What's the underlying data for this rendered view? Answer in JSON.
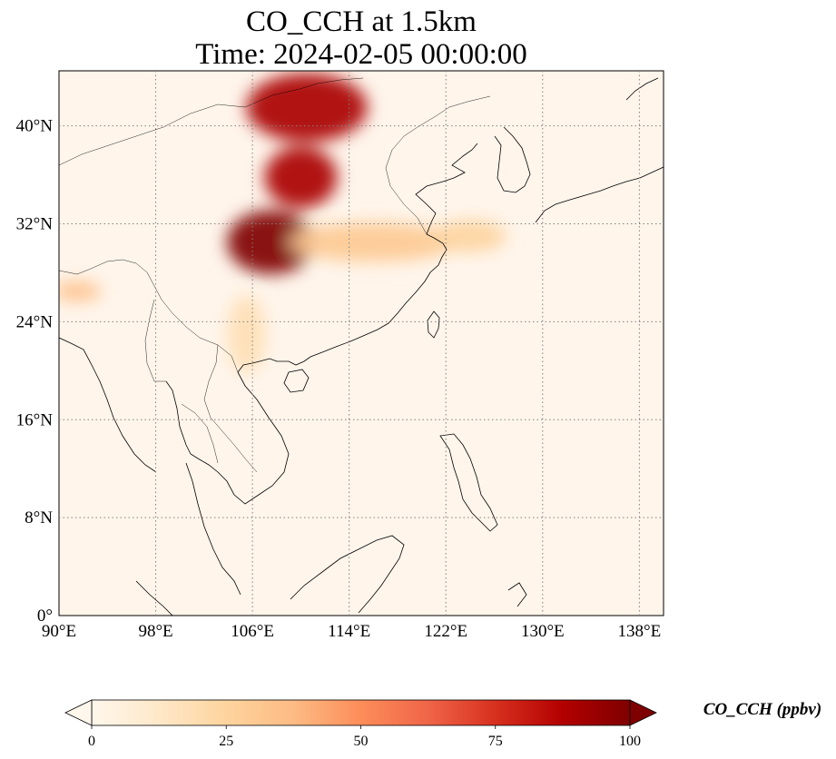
{
  "figure": {
    "title_line1": "CO_CCH at 1.5km",
    "title_line2": "Time: 2024-02-05 00:00:00"
  },
  "map": {
    "lon_range": [
      90,
      140
    ],
    "lat_range": [
      0,
      44.5
    ],
    "gridline_style": "dotted",
    "gridline_color": "#808080",
    "x_ticks": [
      {
        "value": 90,
        "label": "90°E"
      },
      {
        "value": 98,
        "label": "98°E"
      },
      {
        "value": 106,
        "label": "106°E"
      },
      {
        "value": 114,
        "label": "114°E"
      },
      {
        "value": 122,
        "label": "122°E"
      },
      {
        "value": 130,
        "label": "130°E"
      },
      {
        "value": 138,
        "label": "138°E"
      }
    ],
    "y_ticks": [
      {
        "value": 40,
        "label": "40°N"
      },
      {
        "value": 32,
        "label": "32°N"
      },
      {
        "value": 24,
        "label": "24°N"
      },
      {
        "value": 16,
        "label": "16°N"
      },
      {
        "value": 8,
        "label": "8°N"
      },
      {
        "value": 0,
        "label": "0°"
      }
    ],
    "background_color": "#fff5eb",
    "plumes": [
      {
        "name": "central-china-core",
        "lon": 107.5,
        "lat": 30.5,
        "rx_deg": 3.6,
        "ry_deg": 2.6,
        "value": 100
      },
      {
        "name": "sichuan-plume-north",
        "lon": 110.0,
        "lat": 35.8,
        "rx_deg": 3.0,
        "ry_deg": 2.5,
        "value": 90
      },
      {
        "name": "north-plume",
        "lon": 110.5,
        "lat": 41.5,
        "rx_deg": 5.0,
        "ry_deg": 2.8,
        "value": 90
      },
      {
        "name": "yangtze-band",
        "lon": 116.0,
        "lat": 30.5,
        "rx_deg": 7.0,
        "ry_deg": 1.6,
        "value": 30
      },
      {
        "name": "east-sea-outflow",
        "lon": 124.0,
        "lat": 31.0,
        "rx_deg": 3.0,
        "ry_deg": 1.3,
        "value": 25
      },
      {
        "name": "indochina-haze",
        "lon": 105.5,
        "lat": 23.0,
        "rx_deg": 1.6,
        "ry_deg": 3.2,
        "value": 18
      },
      {
        "name": "myanmar-haze",
        "lon": 91.5,
        "lat": 26.5,
        "rx_deg": 2.0,
        "ry_deg": 0.8,
        "value": 35
      }
    ]
  },
  "colorbar": {
    "label": "CO_CCH (ppbv)",
    "min": 0,
    "max": 100,
    "extend": "both",
    "colormap": "OrRd",
    "colors": [
      "#fff7ec",
      "#fee8c8",
      "#fdd49e",
      "#fdbb84",
      "#fc8d59",
      "#ef6548",
      "#d7301f",
      "#b30000",
      "#7f0000"
    ],
    "ticks": [
      {
        "value": 0,
        "label": "0"
      },
      {
        "value": 25,
        "label": "25"
      },
      {
        "value": 50,
        "label": "50"
      },
      {
        "value": 75,
        "label": "75"
      },
      {
        "value": 100,
        "label": "100"
      }
    ]
  }
}
